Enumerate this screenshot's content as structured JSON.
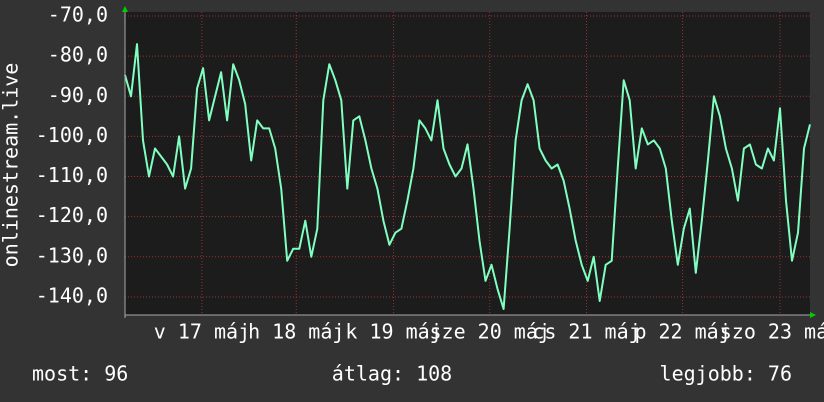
{
  "chart_data": {
    "type": "line",
    "y_label": "onlinestream.live",
    "xlim": [
      0,
      114
    ],
    "xticks": [
      {
        "value": 12.8,
        "label": "v 17 máj"
      },
      {
        "value": 28.5,
        "label": "h 18 máj"
      },
      {
        "value": 44.7,
        "label": "k 19 máj"
      },
      {
        "value": 60.7,
        "label": "sze 20 máj"
      },
      {
        "value": 76.8,
        "label": "cs 21 máj"
      },
      {
        "value": 92.8,
        "label": "p 22 máj"
      },
      {
        "value": 109,
        "label": "szo 23 máj"
      }
    ],
    "ylim": [
      -144.5,
      -69
    ],
    "yticks": [
      {
        "value": -70,
        "label": "-70,0"
      },
      {
        "value": -80,
        "label": "-80,0"
      },
      {
        "value": -90,
        "label": "-90,0"
      },
      {
        "value": -100,
        "label": "-100,0"
      },
      {
        "value": -110,
        "label": "-110,0"
      },
      {
        "value": -120,
        "label": "-120,0"
      },
      {
        "value": -130,
        "label": "-130,0"
      },
      {
        "value": -140,
        "label": "-140,0"
      }
    ],
    "grid": true,
    "series": [
      {
        "color": "#80ffc0",
        "values": [
          -84.7,
          -90,
          -77,
          -101,
          -110,
          -103,
          -105,
          -107,
          -110,
          -100,
          -113,
          -108,
          -88,
          -83,
          -96,
          -90,
          -84,
          -96,
          -82,
          -86,
          -92,
          -106,
          -96,
          -98,
          -98,
          -103,
          -113,
          -131,
          -128,
          -128,
          -121,
          -130,
          -123,
          -91,
          -82,
          -86,
          -91,
          -113,
          -96,
          -95,
          -101,
          -108,
          -113,
          -121,
          -127,
          -124,
          -123,
          -116,
          -108,
          -96,
          -98,
          -101,
          -91,
          -103,
          -107,
          -110,
          -108,
          -102,
          -113,
          -126,
          -136,
          -132,
          -138,
          -143,
          -123,
          -101,
          -91,
          -87,
          -91,
          -103,
          -106,
          -108,
          -107,
          -111,
          -118,
          -126,
          -132,
          -136,
          -130,
          -141,
          -132,
          -131,
          -108,
          -86,
          -91,
          -108,
          -98,
          -102,
          -101,
          -103,
          -108,
          -121,
          -132,
          -123,
          -118,
          -134,
          -121,
          -106,
          -90,
          -95,
          -103,
          -108,
          -116,
          -103,
          -102,
          -107,
          -108,
          -103,
          -106,
          -93,
          -116,
          -131,
          -124,
          -103,
          -97
        ]
      }
    ],
    "footer": [
      "most: 96",
      "átlag: 108",
      "legjobb: 76"
    ]
  }
}
